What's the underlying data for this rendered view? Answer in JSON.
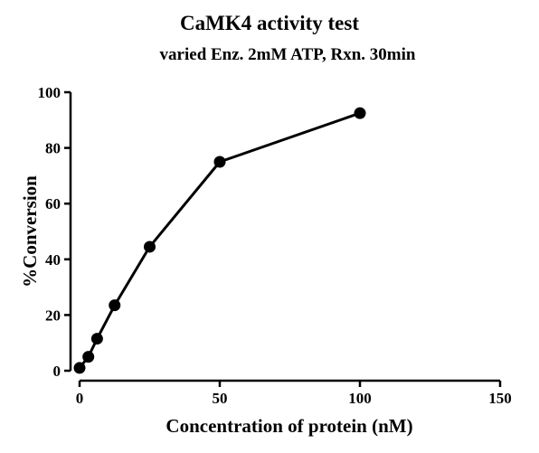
{
  "chart_data": {
    "type": "line",
    "title": "CaMK4 activity test",
    "subtitle": "varied Enz. 2mM ATP, Rxn. 30min",
    "xlabel": "Concentration of protein (nM)",
    "ylabel": "%Conversion",
    "xlim": [
      0,
      150
    ],
    "ylim": [
      0,
      100
    ],
    "x_ticks": [
      "0",
      "50",
      "100",
      "150"
    ],
    "y_ticks": [
      "0",
      "20",
      "40",
      "60",
      "80",
      "100"
    ],
    "grid": false,
    "series": [
      {
        "x": [
          0,
          3.125,
          6.25,
          12.5,
          25,
          50,
          100
        ],
        "y": [
          1,
          5,
          11.5,
          23.5,
          44.5,
          75,
          92.5
        ]
      }
    ]
  }
}
